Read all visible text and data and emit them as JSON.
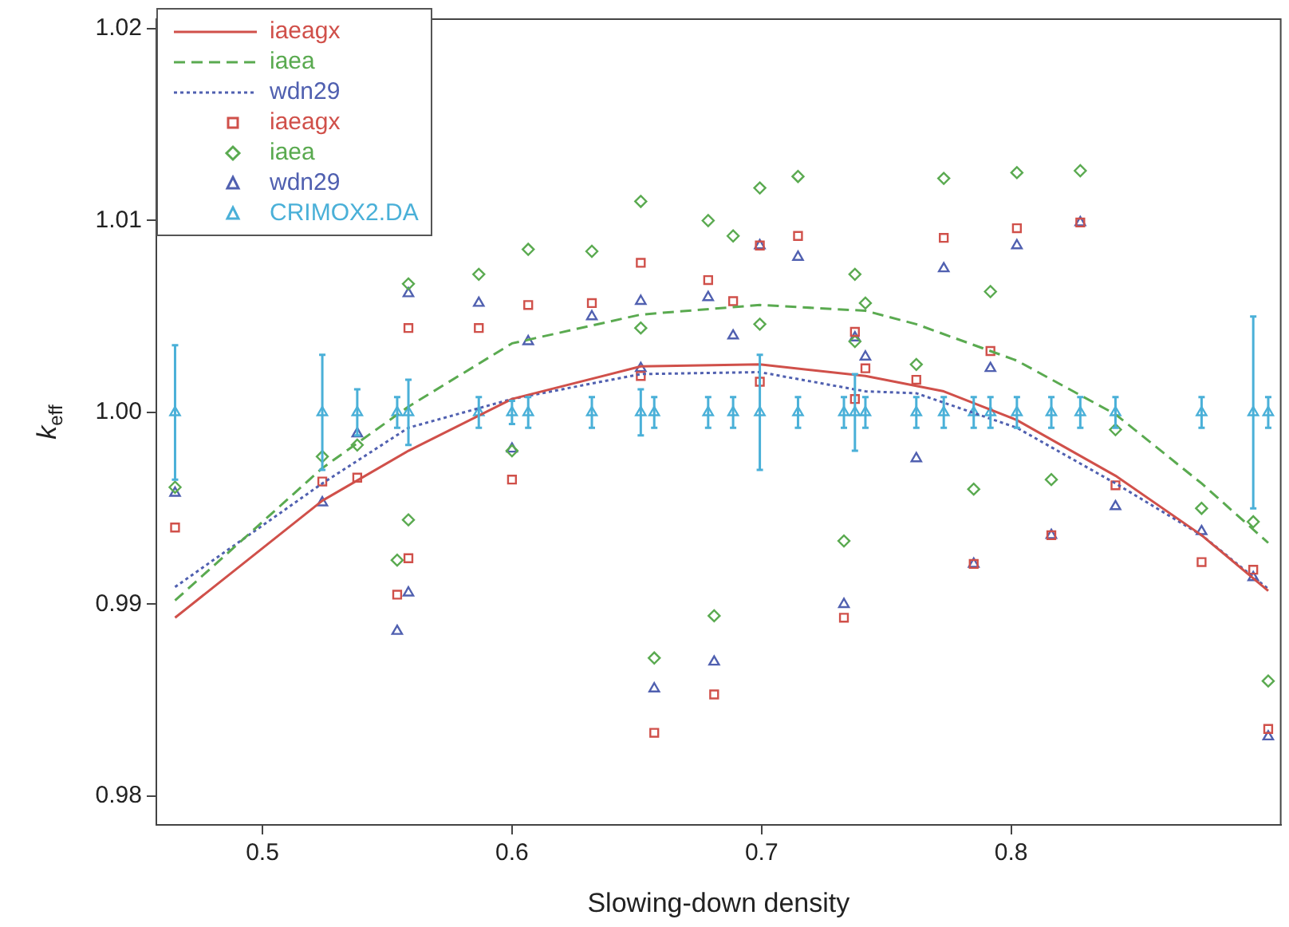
{
  "chart_data": {
    "type": "scatter",
    "xlabel": "Slowing-down density",
    "ylabel": "k$_{eff}$",
    "xlim": [
      0.4575,
      0.908
    ],
    "ylim": [
      0.9785,
      1.0205
    ],
    "xticks": [
      0.5,
      0.6,
      0.7,
      0.8
    ],
    "yticks": [
      0.98,
      0.99,
      {
        "value": 1,
        "label": "1.00"
      },
      1.01,
      1.02
    ],
    "grid": false,
    "legend": "top left",
    "series": [
      {
        "type": "line",
        "name": "iaeagx",
        "color": "#d0504a",
        "line_style": "solid",
        "marker": "none",
        "x": [
          0.465,
          0.524,
          0.5585,
          0.6,
          0.6516,
          0.6993,
          0.7416,
          0.773,
          0.8023,
          0.8418,
          0.8763,
          0.903
        ],
        "values": [
          0.9893,
          0.9954,
          0.998,
          1.0007,
          1.0024,
          1.0025,
          1.0019,
          1.0011,
          0.9996,
          0.9967,
          0.9936,
          0.9907
        ]
      },
      {
        "type": "line",
        "name": "iaea",
        "color": "#5aaa50",
        "line_style": "dashed",
        "marker": "none",
        "x": [
          0.465,
          0.524,
          0.5585,
          0.6,
          0.6516,
          0.6993,
          0.7416,
          0.762,
          0.8023,
          0.8418,
          0.8763,
          0.903
        ],
        "values": [
          0.9902,
          0.9971,
          1.0003,
          1.0036,
          1.0051,
          1.0056,
          1.0053,
          1.0046,
          1.0027,
          0.9999,
          0.9963,
          0.9932
        ]
      },
      {
        "type": "line",
        "name": "wdn29",
        "color": "#5060b0",
        "line_style": "dotted",
        "marker": "none",
        "x": [
          0.465,
          0.524,
          0.5585,
          0.6,
          0.6516,
          0.6993,
          0.7416,
          0.762,
          0.8023,
          0.8418,
          0.8763,
          0.903
        ],
        "values": [
          0.9909,
          0.9963,
          0.9992,
          1.0007,
          1.002,
          1.0021,
          1.0011,
          1.001,
          0.9992,
          0.9963,
          0.9936,
          0.9908
        ]
      },
      {
        "type": "scatter",
        "name": "iaeagx",
        "color": "#d0504a",
        "marker": "square",
        "x": [
          0.465,
          0.524,
          0.538,
          0.554,
          0.5585,
          0.5585,
          0.5867,
          0.6,
          0.6065,
          0.632,
          0.6516,
          0.6516,
          0.657,
          0.6786,
          0.681,
          0.6886,
          0.6993,
          0.6993,
          0.7146,
          0.733,
          0.7374,
          0.7374,
          0.7416,
          0.762,
          0.773,
          0.785,
          0.7917,
          0.8023,
          0.8161,
          0.8277,
          0.8418,
          0.8763,
          0.897,
          0.903
        ],
        "values": [
          0.994,
          0.9964,
          0.9966,
          0.9905,
          1.0044,
          0.9924,
          1.0044,
          0.9965,
          1.0056,
          1.0057,
          1.0078,
          1.0019,
          0.9833,
          1.0069,
          0.9853,
          1.0058,
          1.0087,
          1.0016,
          1.0092,
          0.9893,
          1.0042,
          1.0007,
          1.0023,
          1.0017,
          1.0091,
          0.9921,
          1.0032,
          1.0096,
          0.9936,
          1.0099,
          0.9962,
          0.9922,
          0.9918,
          0.9835
        ]
      },
      {
        "type": "scatter",
        "name": "iaea",
        "color": "#5aaa50",
        "marker": "diamond",
        "x": [
          0.465,
          0.524,
          0.538,
          0.554,
          0.5585,
          0.5585,
          0.5867,
          0.6,
          0.6065,
          0.632,
          0.6516,
          0.6516,
          0.657,
          0.6786,
          0.681,
          0.6886,
          0.6993,
          0.6993,
          0.7146,
          0.733,
          0.7374,
          0.7374,
          0.7416,
          0.762,
          0.773,
          0.785,
          0.7917,
          0.8023,
          0.8161,
          0.8277,
          0.8418,
          0.8763,
          0.897,
          0.903
        ],
        "values": [
          0.9961,
          0.9977,
          0.9983,
          0.9923,
          1.0067,
          0.9944,
          1.0072,
          0.998,
          1.0085,
          1.0084,
          1.011,
          1.0044,
          0.9872,
          1.01,
          0.9894,
          1.0092,
          1.0117,
          1.0046,
          1.0123,
          0.9933,
          1.0072,
          1.0037,
          1.0057,
          1.0025,
          1.0122,
          0.996,
          1.0063,
          1.0125,
          0.9965,
          1.0126,
          0.9991,
          0.995,
          0.9943,
          0.986
        ]
      },
      {
        "type": "scatter",
        "name": "wdn29",
        "color": "#5060b0",
        "marker": "triangle",
        "x": [
          0.465,
          0.524,
          0.538,
          0.554,
          0.5585,
          0.5585,
          0.5867,
          0.6,
          0.6065,
          0.632,
          0.6516,
          0.6516,
          0.657,
          0.6786,
          0.681,
          0.6886,
          0.6993,
          0.7146,
          0.733,
          0.7374,
          0.7416,
          0.762,
          0.773,
          0.785,
          0.7917,
          0.8023,
          0.8161,
          0.8277,
          0.8418,
          0.8763,
          0.897,
          0.903
        ],
        "values": [
          0.9958,
          0.9953,
          0.9989,
          0.9886,
          1.0062,
          0.9906,
          1.0057,
          0.9981,
          1.0037,
          1.005,
          1.0058,
          1.0023,
          0.9856,
          1.006,
          0.987,
          1.004,
          1.0087,
          1.0081,
          0.99,
          1.0039,
          1.0029,
          0.9976,
          1.0075,
          0.9921,
          1.0023,
          1.0087,
          0.9936,
          1.0099,
          0.9951,
          0.9938,
          0.9914,
          0.9831
        ]
      },
      {
        "type": "scatter",
        "name": "CRIMOX2.DA",
        "color": "#4ab0d8",
        "marker": "triangle",
        "x": [
          0.465,
          0.524,
          0.538,
          0.554,
          0.5585,
          0.5867,
          0.6,
          0.6065,
          0.632,
          0.6516,
          0.657,
          0.6786,
          0.6886,
          0.6993,
          0.7146,
          0.733,
          0.7374,
          0.7416,
          0.762,
          0.773,
          0.785,
          0.7917,
          0.8023,
          0.8161,
          0.8277,
          0.8418,
          0.8763,
          0.897,
          0.903
        ],
        "values": [
          1,
          1,
          1,
          1,
          1,
          1,
          1,
          1,
          1,
          1,
          1,
          1,
          1,
          1,
          1,
          1,
          1,
          1,
          1,
          1,
          1,
          1,
          1,
          1,
          1,
          1,
          1,
          1,
          1
        ],
        "errors": [
          0.0035,
          0.003,
          0.0012,
          0.0008,
          0.0017,
          0.0008,
          0.0006,
          0.0008,
          0.0008,
          0.0012,
          0.0008,
          0.0008,
          0.0008,
          0.003,
          0.0008,
          0.0008,
          0.002,
          0.0008,
          0.0008,
          0.0008,
          0.0008,
          0.0008,
          0.0008,
          0.0008,
          0.0008,
          0.0008,
          0.0008,
          0.005,
          0.0008
        ]
      }
    ]
  }
}
